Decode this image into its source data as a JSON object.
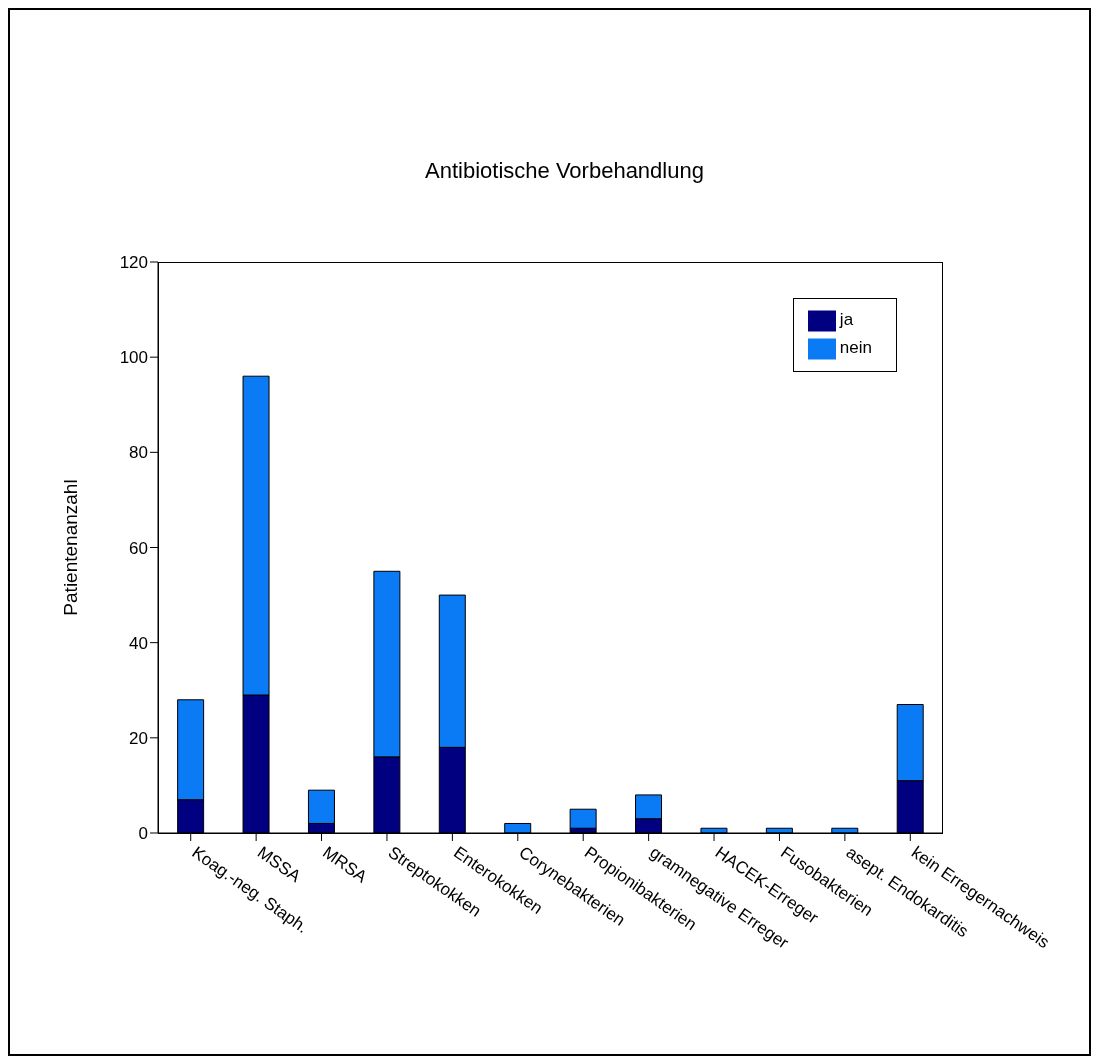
{
  "chart_data": {
    "type": "bar",
    "title": "Antibiotische Vorbehandlung",
    "ylabel": "Patientenanzahl",
    "stacked": true,
    "legend": "top right",
    "grid": false,
    "categories": [
      "Koag.-neg. Staph.",
      "MSSA",
      "MRSA",
      "Streptokokken",
      "Enterokokken",
      "Corynebakterien",
      "Propionibakterien",
      "gramnegative Erreger",
      "HACEK-Erreger",
      "Fusobakterien",
      "asept. Endokarditis",
      "kein Erregernachweis"
    ],
    "series": [
      {
        "name": "ja",
        "color": "#000080",
        "values": [
          7,
          29,
          2,
          16,
          18,
          0,
          1,
          3,
          0,
          0,
          0,
          11
        ]
      },
      {
        "name": "nein",
        "color": "#0a7af5",
        "values": [
          21,
          67,
          7,
          39,
          32,
          2,
          4,
          5,
          1,
          1,
          1,
          16
        ]
      }
    ],
    "ylim": [
      0,
      120
    ],
    "yticks": [
      0,
      20,
      40,
      60,
      80,
      100,
      120
    ]
  }
}
